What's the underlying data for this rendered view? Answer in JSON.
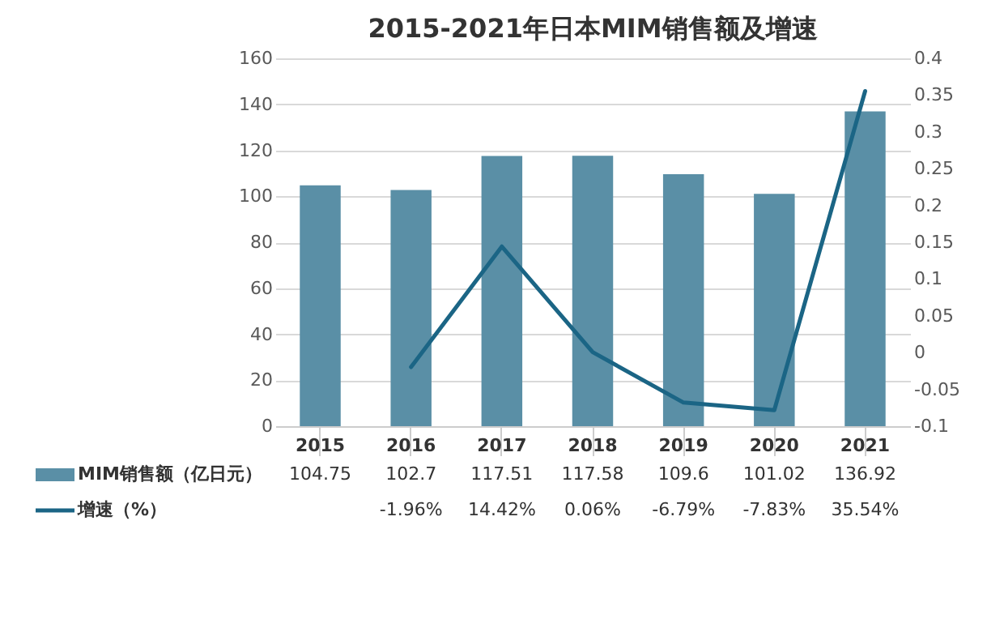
{
  "chart_data": {
    "type": "bar",
    "title": "2015-2021年日本MIM销售额及增速",
    "categories": [
      "2015",
      "2016",
      "2017",
      "2018",
      "2019",
      "2020",
      "2021"
    ],
    "series": [
      {
        "name": "MIM销售额（亿日元）",
        "color": "#5a8fa6",
        "values": [
          104.75,
          102.7,
          117.51,
          117.58,
          109.6,
          101.02,
          136.92
        ],
        "value_labels": [
          "104.75",
          "102.7",
          "117.51",
          "117.58",
          "109.6",
          "101.02",
          "136.92"
        ]
      },
      {
        "name": "增速（%）",
        "type": "line",
        "axis": "y2",
        "color": "#1b6585",
        "values": [
          null,
          -0.0196,
          0.1442,
          0.0006,
          -0.0679,
          -0.0783,
          0.3554
        ],
        "value_labels": [
          null,
          "-1.96%",
          "14.42%",
          "0.06%",
          "-6.79%",
          "-7.83%",
          "35.54%"
        ]
      }
    ],
    "ylim": [
      0,
      160
    ],
    "yticks": [
      0,
      20,
      40,
      60,
      80,
      100,
      120,
      140,
      160
    ],
    "y2lim": [
      -0.1,
      0.4
    ],
    "y2ticks": [
      -0.1,
      -0.05,
      0,
      0.05,
      0.1,
      0.15,
      0.2,
      0.25,
      0.3,
      0.35,
      0.4
    ],
    "grid": "y",
    "legend": "bottom"
  }
}
